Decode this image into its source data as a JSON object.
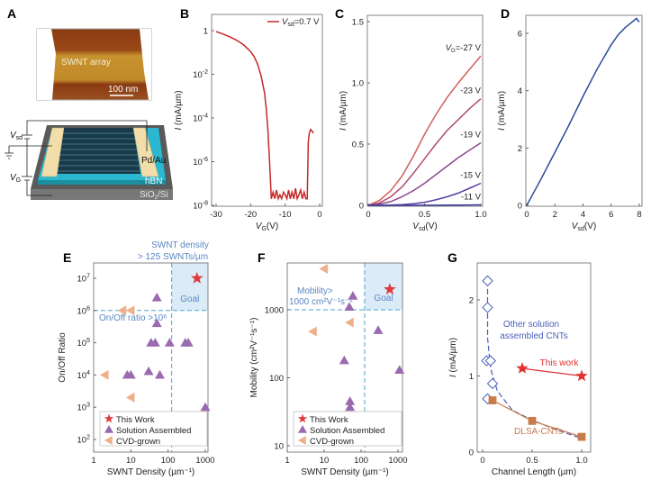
{
  "panel_labels": [
    "A",
    "B",
    "C",
    "D",
    "E",
    "F",
    "G"
  ],
  "panel_a": {
    "afm_label": "SWNT array",
    "scale_bar": "100 nm",
    "vsd": {
      "main": "V",
      "sub": "sd"
    },
    "vg": {
      "main": "V",
      "sub": "G"
    },
    "contact": "Pd/Au",
    "dielectric": "hBN",
    "substrate": {
      "main": "SiO",
      "sub": "2",
      "rest": "/Si"
    }
  },
  "chart_data": [
    {
      "id": "B",
      "type": "line",
      "yscale": "log",
      "xlabel": {
        "main": "V",
        "sub": "G",
        "rest": "(V)"
      },
      "ylabel": {
        "italic": "I",
        "rest": " (mA/µm)"
      },
      "xlim": [
        -31,
        1
      ],
      "ylim": [
        1e-08,
        3
      ],
      "xticks": [
        {
          "v": -30,
          "t": "-30"
        },
        {
          "v": -20,
          "t": "-20"
        },
        {
          "v": -10,
          "t": "-10"
        },
        {
          "v": 0,
          "t": "0"
        }
      ],
      "yticks": [
        {
          "v": 1,
          "t": "1",
          "e": ""
        },
        {
          "v": 0.01,
          "t": "10",
          "e": "-2"
        },
        {
          "v": 0.0001,
          "t": "10",
          "e": "-4"
        },
        {
          "v": 1e-06,
          "t": "10",
          "e": "-6"
        },
        {
          "v": 1e-08,
          "t": "10",
          "e": "-8"
        }
      ],
      "legend": {
        "main": "V",
        "sub": "sd",
        "rest": "=0.7 V",
        "position": "top-right"
      },
      "series": [
        {
          "color": "#c62828",
          "x": [
            -30,
            -28,
            -26,
            -24,
            -22,
            -20,
            -19,
            -18,
            -17,
            -16,
            -15.5,
            -15,
            -14.6,
            -14.3,
            -14,
            -13.5,
            -13,
            -12.5,
            -12,
            -11.5,
            -11,
            -10.5,
            -10,
            -9.5,
            -9,
            -8.5,
            -8,
            -7.5,
            -7,
            -6.5,
            -6,
            -5.5,
            -5,
            -4.5,
            -4,
            -3.6,
            -3.3,
            -3,
            -2.6,
            -2.2,
            -1.8
          ],
          "y": [
            0.9,
            0.7,
            0.52,
            0.36,
            0.22,
            0.11,
            0.065,
            0.03,
            0.009,
            0.0015,
            0.0003,
            3e-05,
            2e-06,
            2e-07,
            2e-08,
            4e-08,
            2e-08,
            5e-08,
            2e-08,
            3e-08,
            2e-08,
            4e-08,
            3e-08,
            2e-08,
            5e-08,
            2e-08,
            4e-08,
            2e-08,
            6e-08,
            2e-08,
            3e-08,
            5e-08,
            2e-08,
            4e-08,
            2e-08,
            2e-08,
            8e-06,
            2e-05,
            3e-05,
            2.5e-05,
            2e-05
          ]
        }
      ]
    },
    {
      "id": "C",
      "type": "line",
      "xlabel": {
        "main": "V",
        "sub": "sd",
        "rest": "(V)"
      },
      "ylabel": {
        "italic": "I",
        "rest": " (mA/µm)"
      },
      "xlim": [
        0,
        1
      ],
      "ylim": [
        0,
        1.55
      ],
      "xticks": [
        {
          "v": 0,
          "t": "0"
        },
        {
          "v": 0.5,
          "t": "0.5"
        },
        {
          "v": 1,
          "t": "1.0"
        }
      ],
      "yticks": [
        {
          "v": 0,
          "t": "0"
        },
        {
          "v": 0.5,
          "t": "0.5"
        },
        {
          "v": 1,
          "t": "1.0"
        },
        {
          "v": 1.5,
          "t": "1.5"
        }
      ],
      "x": [
        0,
        0.1,
        0.2,
        0.3,
        0.4,
        0.5,
        0.6,
        0.7,
        0.8,
        0.9,
        1.0
      ],
      "series": [
        {
          "name": "-27 V",
          "prefix": {
            "main": "V",
            "sub": "G",
            "rest": "="
          },
          "color": "#d0605a",
          "y": [
            0,
            0.04,
            0.12,
            0.24,
            0.4,
            0.58,
            0.74,
            0.88,
            1.0,
            1.11,
            1.22
          ]
        },
        {
          "name": "-23 V",
          "color": "#b04c70",
          "y": [
            0,
            0.02,
            0.07,
            0.15,
            0.26,
            0.38,
            0.5,
            0.61,
            0.7,
            0.79,
            0.87
          ]
        },
        {
          "name": "-19 V",
          "color": "#8a4a8c",
          "y": [
            0,
            0.01,
            0.03,
            0.07,
            0.12,
            0.18,
            0.25,
            0.32,
            0.39,
            0.45,
            0.51
          ]
        },
        {
          "name": "-15 V",
          "color": "#5a3fa0",
          "y": [
            0,
            0,
            0.002,
            0.006,
            0.013,
            0.025,
            0.045,
            0.07,
            0.1,
            0.14,
            0.18
          ]
        },
        {
          "name": "-11 V",
          "color": "#3a3a9a",
          "y": [
            0,
            0,
            0,
            0,
            0,
            0.001,
            0.001,
            0.002,
            0.002,
            0.003,
            0.004
          ]
        }
      ]
    },
    {
      "id": "D",
      "type": "line",
      "xlabel": {
        "main": "V",
        "sub": "sd",
        "rest": "(V)"
      },
      "ylabel": {
        "italic": "I",
        "rest": " (mA/µm)"
      },
      "xlim": [
        0,
        8
      ],
      "ylim": [
        0,
        6.6
      ],
      "xticks": [
        {
          "v": 0,
          "t": "0"
        },
        {
          "v": 2,
          "t": "2"
        },
        {
          "v": 4,
          "t": "4"
        },
        {
          "v": 6,
          "t": "6"
        },
        {
          "v": 8,
          "t": "8"
        }
      ],
      "yticks": [
        {
          "v": 0,
          "t": "0"
        },
        {
          "v": 2,
          "t": "2"
        },
        {
          "v": 4,
          "t": "4"
        },
        {
          "v": 6,
          "t": "6"
        }
      ],
      "series": [
        {
          "color": "#2a4a9a",
          "x": [
            0,
            0.5,
            1,
            2,
            3,
            4,
            5,
            6,
            6.5,
            7,
            7.5,
            7.8,
            7.9,
            8
          ],
          "y": [
            0,
            0.45,
            0.9,
            1.85,
            2.8,
            3.8,
            4.75,
            5.6,
            5.95,
            6.2,
            6.4,
            6.52,
            6.45,
            6.4
          ]
        }
      ]
    },
    {
      "id": "E",
      "type": "scatter",
      "xscale": "log",
      "yscale": "log",
      "xlabel": "SWNT Density (µm⁻¹)",
      "ylabel": "On/Off Ratio",
      "xlim": [
        1,
        1100
      ],
      "ylim": [
        25,
        30000000.0
      ],
      "xticks": [
        {
          "v": 1,
          "t": "1"
        },
        {
          "v": 10,
          "t": "10"
        },
        {
          "v": 100,
          "t": "100"
        },
        {
          "v": 1000,
          "t": "1000"
        }
      ],
      "yticks": [
        {
          "v": 100,
          "t": "10",
          "e": "2"
        },
        {
          "v": 1000,
          "t": "10",
          "e": "3"
        },
        {
          "v": 10000,
          "t": "10",
          "e": "4"
        },
        {
          "v": 100000,
          "t": "10",
          "e": "5"
        },
        {
          "v": 1000000,
          "t": "10",
          "e": "6"
        },
        {
          "v": 10000000,
          "t": "10",
          "e": "7"
        }
      ],
      "thresholds": {
        "x": 125,
        "y": 1000000,
        "x_label_1": "SWNT density",
        "x_label_2": "> 125 SWNTs/µm",
        "y_label": "On/Off ratio >10⁶",
        "goal": "Goal"
      },
      "legend_position": "bottom-left",
      "series": [
        {
          "name": "This Work",
          "marker": "star",
          "color": "#e03a3a",
          "points": [
            [
              600,
              10000000
            ]
          ]
        },
        {
          "name": "Solution Assembled",
          "marker": "triangle-up",
          "color": "#9a6ab0",
          "points": [
            [
              50,
              2500000
            ],
            [
              50,
              400000
            ],
            [
              35,
              100000
            ],
            [
              45,
              100000
            ],
            [
              110,
              100000
            ],
            [
              290,
              100000
            ],
            [
              350,
              100000
            ],
            [
              8,
              10000
            ],
            [
              10,
              10000
            ],
            [
              30,
              13000
            ],
            [
              60,
              10000
            ],
            [
              1000,
              1000
            ]
          ]
        },
        {
          "name": "CVD-grown",
          "marker": "triangle-left",
          "color": "#eeb08a",
          "points": [
            [
              6,
              1000000
            ],
            [
              10,
              1000000
            ],
            [
              2,
              10000
            ],
            [
              10,
              2000
            ]
          ]
        }
      ]
    },
    {
      "id": "F",
      "type": "scatter",
      "xscale": "log",
      "yscale": "log",
      "xlabel": "SWNT Density (µm⁻¹)",
      "ylabel": {
        "main": "Mobility (cm²V⁻¹s⁻¹)"
      },
      "xlim": [
        1,
        1100
      ],
      "ylim": [
        8,
        5000
      ],
      "xticks": [
        {
          "v": 1,
          "t": "1"
        },
        {
          "v": 10,
          "t": "10"
        },
        {
          "v": 100,
          "t": "100"
        },
        {
          "v": 1000,
          "t": "1000"
        }
      ],
      "yticks": [
        {
          "v": 10,
          "t": "10"
        },
        {
          "v": 100,
          "t": "100"
        },
        {
          "v": 1000,
          "t": "1000"
        }
      ],
      "thresholds": {
        "x": 125,
        "y": 1000,
        "y_label_1": "Mobility>",
        "y_label_2": "1000 cm²V⁻¹s⁻¹",
        "goal": "Goal"
      },
      "legend_position": "bottom-left",
      "series": [
        {
          "name": "This Work",
          "marker": "star",
          "color": "#e03a3a",
          "points": [
            [
              600,
              2000
            ]
          ]
        },
        {
          "name": "Solution Assembled",
          "marker": "triangle-up",
          "color": "#9a6ab0",
          "points": [
            [
              60,
              1600
            ],
            [
              48,
              1100
            ],
            [
              290,
              500
            ],
            [
              35,
              180
            ],
            [
              1100,
              130
            ],
            [
              50,
              45
            ],
            [
              50,
              37
            ]
          ]
        },
        {
          "name": "CVD-grown",
          "marker": "triangle-left",
          "color": "#eeb08a",
          "points": [
            [
              10,
              4000
            ],
            [
              50,
              650
            ],
            [
              5,
              480
            ]
          ]
        }
      ]
    },
    {
      "id": "G",
      "type": "scatter",
      "xlabel": "Channel Length (µm)",
      "ylabel": {
        "italic": "I",
        "rest": " (mA/µm)"
      },
      "xlim": [
        -0.03,
        1.1
      ],
      "ylim": [
        0,
        2.5
      ],
      "xticks": [
        {
          "v": 0,
          "t": "0"
        },
        {
          "v": 0.5,
          "t": "0.5"
        },
        {
          "v": 1,
          "t": "1.0"
        }
      ],
      "yticks": [
        {
          "v": 0,
          "t": "0"
        },
        {
          "v": 1,
          "t": "1"
        },
        {
          "v": 2,
          "t": "2"
        }
      ],
      "series": [
        {
          "name_1": "Other solution",
          "name_2": "assembled CNTs",
          "marker": "diamond-open",
          "color": "#4a5fb8",
          "points": [
            [
              0.05,
              2.25
            ],
            [
              0.05,
              1.9
            ],
            [
              0.04,
              1.2
            ],
            [
              0.08,
              1.2
            ],
            [
              0.1,
              0.9
            ],
            [
              0.05,
              0.7
            ]
          ],
          "fit": [
            [
              0.05,
              2.25
            ],
            [
              0.05,
              1.5
            ],
            [
              0.08,
              1.1
            ],
            [
              0.15,
              0.8
            ],
            [
              0.3,
              0.55
            ],
            [
              0.5,
              0.42
            ],
            [
              0.75,
              0.29
            ],
            [
              1.02,
              0.17
            ]
          ]
        },
        {
          "name": "DLSA-CNTs",
          "marker": "square",
          "color": "#c97b4a",
          "points": [
            [
              0.1,
              0.68
            ],
            [
              0.5,
              0.41
            ],
            [
              1.0,
              0.2
            ]
          ]
        },
        {
          "name": "This work",
          "marker": "star",
          "color": "#e03030",
          "points": [
            [
              0.4,
              1.1
            ],
            [
              1.0,
              1.0
            ]
          ]
        }
      ]
    }
  ],
  "colors": {
    "threshold": "#4aa6cc",
    "goal_fill": "#dcebf8",
    "annotation": "#5a86c0"
  }
}
